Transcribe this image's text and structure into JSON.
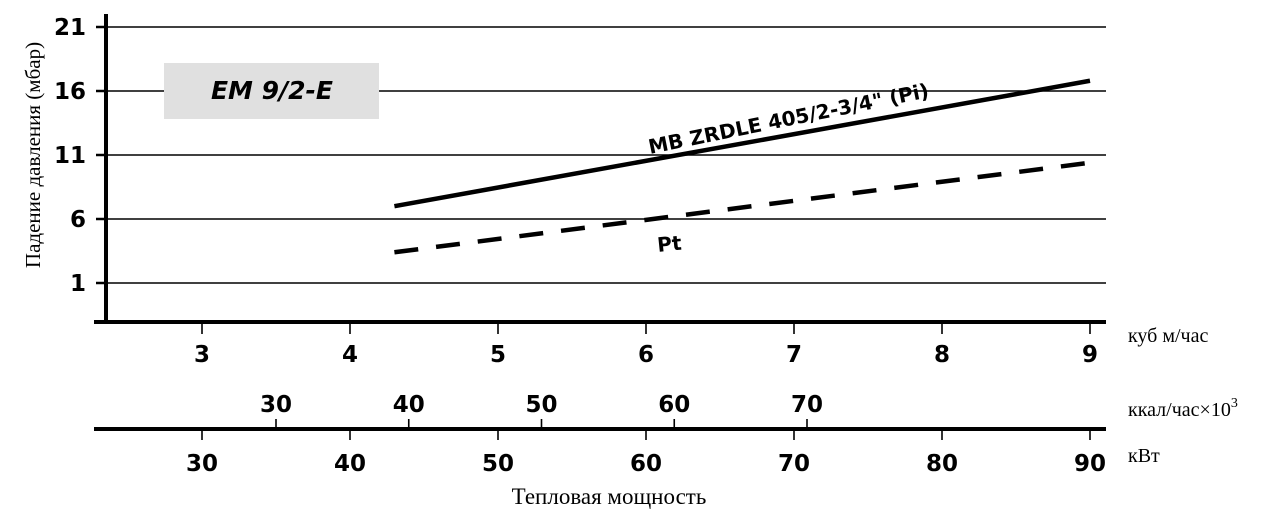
{
  "chart_data": {
    "type": "line",
    "title": "",
    "model_box": "EM 9/2-E",
    "ylabel": "Падение давления (мбар)",
    "y_ticks": [
      "21",
      "16",
      "11",
      "6",
      "1"
    ],
    "ylim": [
      -2,
      21
    ],
    "x_title": "Тепловая мощность",
    "x_axes": [
      {
        "unit": "куб м/час",
        "ticks": [
          "3",
          "4",
          "5",
          "6",
          "7",
          "8",
          "9"
        ],
        "values": [
          3,
          4,
          5,
          6,
          7,
          8,
          9
        ]
      },
      {
        "unit": "ккал/час×10",
        "unit_sup": "3",
        "ticks": [
          "30",
          "40",
          "50",
          "60",
          "70"
        ],
        "values": [
          30,
          40,
          50,
          60,
          70
        ]
      },
      {
        "unit": "кВт",
        "ticks": [
          "30",
          "40",
          "50",
          "60",
          "70",
          "80",
          "90"
        ],
        "values": [
          30,
          40,
          50,
          60,
          70,
          80,
          90
        ]
      }
    ],
    "x_unit": "куб м/час",
    "series": [
      {
        "name": "MB ZRDLE 405/2-3/4\" (Pi)",
        "style": "solid",
        "x": [
          4.3,
          9.0
        ],
        "y": [
          7.0,
          16.8
        ]
      },
      {
        "name": "Pt",
        "style": "dashed",
        "x": [
          4.3,
          9.0
        ],
        "y": [
          3.4,
          10.4
        ]
      }
    ],
    "colors": {
      "line": "#000000",
      "model_box_bg": "#e0e0e0",
      "background": "#ffffff"
    }
  }
}
